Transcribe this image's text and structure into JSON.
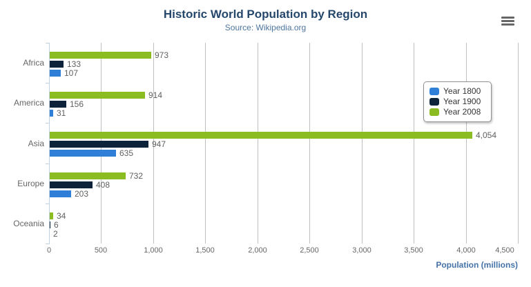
{
  "header": {
    "title": "Historic World Population by Region",
    "subtitle": "Source: Wikipedia.org"
  },
  "context_menu": {
    "icon": "hamburger-menu-icon"
  },
  "chart_data": {
    "type": "bar",
    "orientation": "horizontal",
    "title": "Historic World Population by Region",
    "subtitle": "Source: Wikipedia.org",
    "xlabel": "Population (millions)",
    "xlim": [
      0,
      4500
    ],
    "xticks": {
      "values": [
        0,
        500,
        1000,
        1500,
        2000,
        2500,
        3000,
        3500,
        4000,
        4500
      ],
      "labels": [
        "0",
        "500",
        "1,000",
        "1,500",
        "2,000",
        "2,500",
        "3,000",
        "3,500",
        "4,000",
        "4,500"
      ]
    },
    "categories": [
      "Africa",
      "America",
      "Asia",
      "Europe",
      "Oceania"
    ],
    "series": [
      {
        "name": "Year 1800",
        "color": "#2f7ed8",
        "values": [
          107,
          31,
          635,
          203,
          2
        ]
      },
      {
        "name": "Year 1900",
        "color": "#0d233a",
        "values": [
          133,
          156,
          947,
          408,
          6
        ]
      },
      {
        "name": "Year 2008",
        "color": "#8bbc21",
        "values": [
          973,
          914,
          4054,
          732,
          34
        ]
      }
    ],
    "bar_order_top_to_bottom": [
      "Year 2008",
      "Year 1900",
      "Year 1800"
    ],
    "data_labels": true,
    "grid": true,
    "legend_position": "right"
  },
  "colors": {
    "title": "#25476b",
    "subtitle": "#4d759e",
    "axis_title": "#4572a7",
    "axis_labels": "#666666",
    "data_labels": "#606060",
    "grid_line": "#c0c0c0",
    "axis_line": "#c0d0e0",
    "legend_border": "#909090",
    "menu_icon": "#666666"
  }
}
